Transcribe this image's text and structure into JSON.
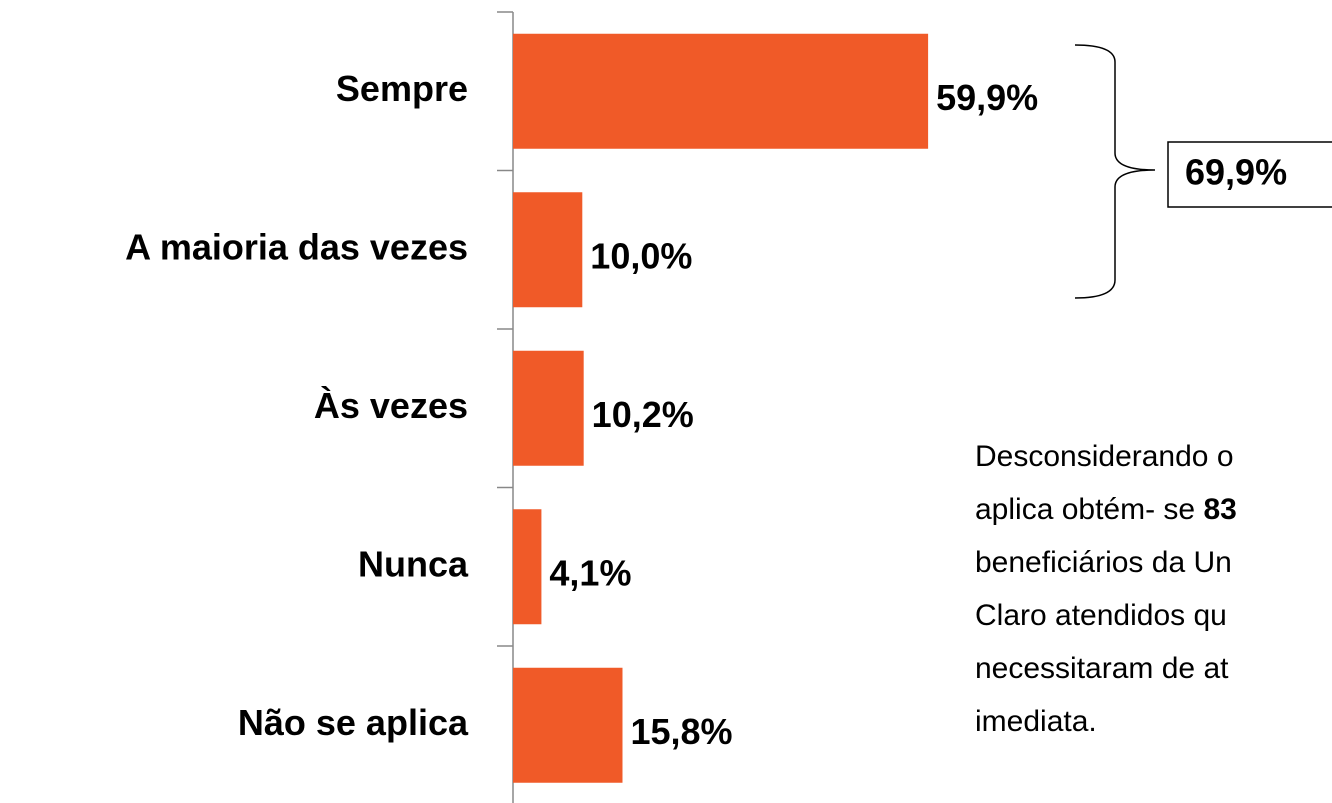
{
  "chart_data": {
    "type": "bar",
    "orientation": "horizontal",
    "categories": [
      "Sempre",
      "A maioria das vezes",
      "Às vezes",
      "Nunca",
      "Não se aplica"
    ],
    "values": [
      59.9,
      10.0,
      10.2,
      4.1,
      15.8
    ],
    "value_labels": [
      "59,9%",
      "10,0%",
      "10,2%",
      "4,1%",
      "15,8%"
    ],
    "color": "#F05A28",
    "annotations": {
      "bracket_label": "69,9%",
      "note_lines": [
        "Desconsiderando o",
        "aplica obtém- se ",
        "beneficiários da Un",
        "Claro atendidos qu",
        "necessitaram de at",
        "imediata."
      ],
      "note_bold": "83"
    }
  }
}
